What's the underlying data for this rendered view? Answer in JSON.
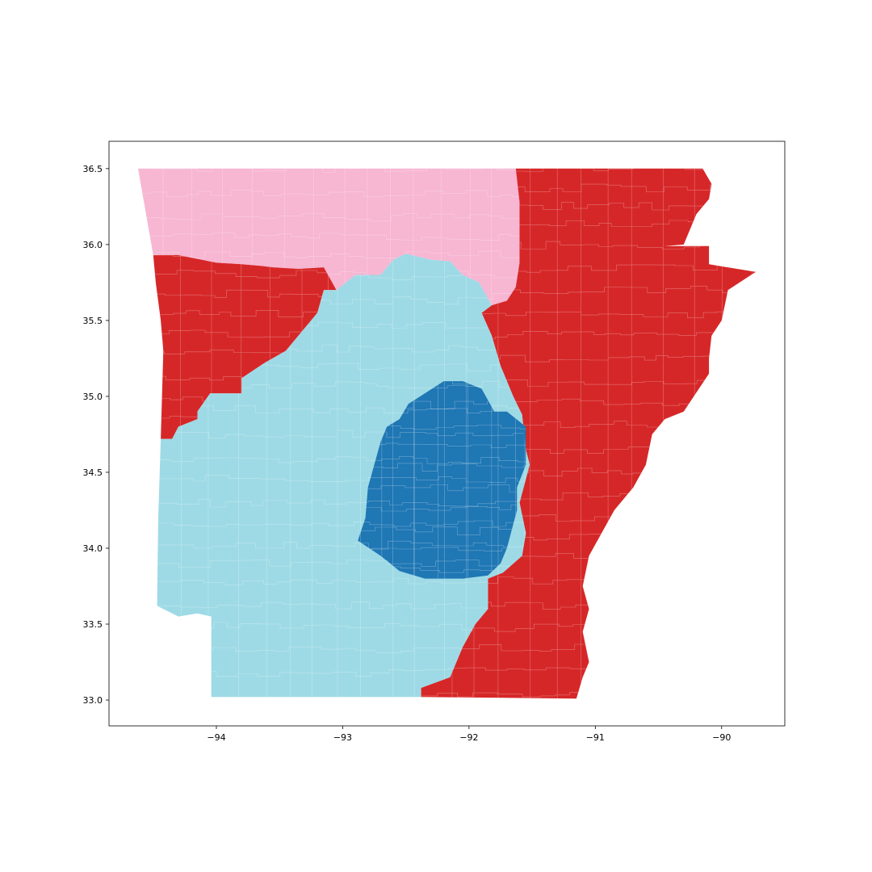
{
  "map": {
    "x_axis": {
      "range": [
        -94.85,
        -89.5
      ],
      "ticks": [
        {
          "value": -94,
          "label": "−94"
        },
        {
          "value": -93,
          "label": "−93"
        },
        {
          "value": -92,
          "label": "−92"
        },
        {
          "value": -91,
          "label": "−91"
        },
        {
          "value": -90,
          "label": "−90"
        }
      ]
    },
    "y_axis": {
      "range": [
        32.83,
        36.68
      ],
      "ticks": [
        {
          "value": 33.0,
          "label": "33.0"
        },
        {
          "value": 33.5,
          "label": "33.5"
        },
        {
          "value": 34.0,
          "label": "34.0"
        },
        {
          "value": 34.5,
          "label": "34.5"
        },
        {
          "value": 35.0,
          "label": "35.0"
        },
        {
          "value": 35.5,
          "label": "35.5"
        },
        {
          "value": 36.0,
          "label": "36.0"
        },
        {
          "value": 36.5,
          "label": "36.5"
        }
      ]
    },
    "grid": false,
    "legend": "none",
    "regions": [
      {
        "id": "district-northwest",
        "color": "#f7b6d2",
        "polygon": [
          [
            -94.62,
            36.5
          ],
          [
            -91.63,
            36.5
          ],
          [
            -91.6,
            36.28
          ],
          [
            -91.6,
            35.88
          ],
          [
            -91.63,
            35.72
          ],
          [
            -91.7,
            35.63
          ],
          [
            -91.82,
            35.6
          ],
          [
            -91.92,
            35.75
          ],
          [
            -92.05,
            35.8
          ],
          [
            -92.15,
            35.89
          ],
          [
            -92.3,
            35.9
          ],
          [
            -92.5,
            35.94
          ],
          [
            -92.6,
            35.9
          ],
          [
            -92.7,
            35.8
          ],
          [
            -92.9,
            35.8
          ],
          [
            -93.05,
            35.7
          ],
          [
            -93.15,
            35.85
          ],
          [
            -93.35,
            35.84
          ],
          [
            -93.55,
            35.85
          ],
          [
            -93.65,
            35.86
          ],
          [
            -93.8,
            35.87
          ],
          [
            -94.0,
            35.88
          ],
          [
            -94.3,
            35.93
          ],
          [
            -94.5,
            35.93
          ]
        ]
      },
      {
        "id": "district-fort-smith",
        "color": "#d62728",
        "polygon": [
          [
            -94.5,
            35.93
          ],
          [
            -94.3,
            35.93
          ],
          [
            -94.0,
            35.88
          ],
          [
            -93.8,
            35.87
          ],
          [
            -93.65,
            35.86
          ],
          [
            -93.55,
            35.85
          ],
          [
            -93.35,
            35.84
          ],
          [
            -93.15,
            35.85
          ],
          [
            -93.05,
            35.7
          ],
          [
            -93.15,
            35.7
          ],
          [
            -93.2,
            35.55
          ],
          [
            -93.3,
            35.45
          ],
          [
            -93.45,
            35.3
          ],
          [
            -93.62,
            35.22
          ],
          [
            -93.8,
            35.12
          ],
          [
            -93.8,
            35.02
          ],
          [
            -94.05,
            35.02
          ],
          [
            -94.15,
            34.9
          ],
          [
            -94.15,
            34.85
          ],
          [
            -94.3,
            34.8
          ],
          [
            -94.35,
            34.72
          ],
          [
            -94.44,
            34.72
          ],
          [
            -94.42,
            35.3
          ],
          [
            -94.44,
            35.5
          ],
          [
            -94.48,
            35.75
          ]
        ]
      },
      {
        "id": "district-east",
        "color": "#d62728",
        "polygon": [
          [
            -91.63,
            36.5
          ],
          [
            -90.15,
            36.5
          ],
          [
            -90.08,
            36.4
          ],
          [
            -90.1,
            36.3
          ],
          [
            -90.2,
            36.2
          ],
          [
            -90.3,
            36.0
          ],
          [
            -90.45,
            35.99
          ],
          [
            -90.65,
            35.99
          ],
          [
            -90.65,
            35.99
          ],
          [
            -90.1,
            35.99
          ],
          [
            -90.1,
            35.87
          ],
          [
            -89.73,
            35.82
          ],
          [
            -89.95,
            35.7
          ],
          [
            -90.0,
            35.5
          ],
          [
            -90.08,
            35.4
          ],
          [
            -90.1,
            35.25
          ],
          [
            -90.1,
            35.15
          ],
          [
            -90.3,
            34.9
          ],
          [
            -90.45,
            34.85
          ],
          [
            -90.55,
            34.75
          ],
          [
            -90.6,
            34.55
          ],
          [
            -90.7,
            34.4
          ],
          [
            -90.85,
            34.25
          ],
          [
            -90.95,
            34.1
          ],
          [
            -91.05,
            33.95
          ],
          [
            -91.1,
            33.75
          ],
          [
            -91.05,
            33.6
          ],
          [
            -91.1,
            33.45
          ],
          [
            -91.05,
            33.25
          ],
          [
            -91.1,
            33.15
          ],
          [
            -91.15,
            33.01
          ],
          [
            -92.38,
            33.02
          ],
          [
            -92.38,
            33.08
          ],
          [
            -92.15,
            33.15
          ],
          [
            -92.05,
            33.35
          ],
          [
            -91.95,
            33.5
          ],
          [
            -91.85,
            33.6
          ],
          [
            -91.85,
            33.8
          ],
          [
            -91.73,
            33.84
          ],
          [
            -91.58,
            33.95
          ],
          [
            -91.55,
            34.1
          ],
          [
            -91.6,
            34.3
          ],
          [
            -91.52,
            34.55
          ],
          [
            -91.55,
            34.65
          ],
          [
            -91.58,
            34.88
          ],
          [
            -91.65,
            35.0
          ],
          [
            -91.75,
            35.2
          ],
          [
            -91.82,
            35.4
          ],
          [
            -91.9,
            35.55
          ],
          [
            -91.82,
            35.6
          ],
          [
            -91.7,
            35.63
          ],
          [
            -91.63,
            35.72
          ],
          [
            -91.6,
            35.88
          ],
          [
            -91.6,
            36.28
          ]
        ]
      },
      {
        "id": "district-south-west",
        "color": "#9edae5",
        "polygon": [
          [
            -94.44,
            34.72
          ],
          [
            -94.35,
            34.72
          ],
          [
            -94.3,
            34.8
          ],
          [
            -94.15,
            34.85
          ],
          [
            -94.15,
            34.9
          ],
          [
            -94.05,
            35.02
          ],
          [
            -93.8,
            35.02
          ],
          [
            -93.8,
            35.12
          ],
          [
            -93.62,
            35.22
          ],
          [
            -93.45,
            35.3
          ],
          [
            -93.3,
            35.45
          ],
          [
            -93.2,
            35.55
          ],
          [
            -93.15,
            35.7
          ],
          [
            -93.05,
            35.7
          ],
          [
            -92.9,
            35.8
          ],
          [
            -92.7,
            35.8
          ],
          [
            -92.6,
            35.9
          ],
          [
            -92.5,
            35.94
          ],
          [
            -92.3,
            35.9
          ],
          [
            -92.15,
            35.89
          ],
          [
            -92.05,
            35.8
          ],
          [
            -91.92,
            35.75
          ],
          [
            -91.82,
            35.6
          ],
          [
            -91.9,
            35.55
          ],
          [
            -91.82,
            35.4
          ],
          [
            -91.75,
            35.2
          ],
          [
            -91.65,
            35.0
          ],
          [
            -91.58,
            34.88
          ],
          [
            -91.55,
            34.65
          ],
          [
            -91.52,
            34.55
          ],
          [
            -91.6,
            34.3
          ],
          [
            -91.55,
            34.1
          ],
          [
            -91.58,
            33.95
          ],
          [
            -91.73,
            33.84
          ],
          [
            -91.85,
            33.8
          ],
          [
            -91.85,
            33.6
          ],
          [
            -91.95,
            33.5
          ],
          [
            -92.05,
            33.35
          ],
          [
            -92.15,
            33.15
          ],
          [
            -92.38,
            33.08
          ],
          [
            -92.38,
            33.02
          ],
          [
            -94.04,
            33.02
          ],
          [
            -94.04,
            33.55
          ],
          [
            -94.15,
            33.57
          ],
          [
            -94.3,
            33.55
          ],
          [
            -94.47,
            33.62
          ],
          [
            -94.46,
            34.2
          ]
        ]
      },
      {
        "id": "district-central",
        "color": "#1f77b4",
        "polygon": [
          [
            -92.48,
            34.95
          ],
          [
            -92.2,
            35.1
          ],
          [
            -92.05,
            35.1
          ],
          [
            -91.9,
            35.05
          ],
          [
            -91.8,
            34.9
          ],
          [
            -91.7,
            34.9
          ],
          [
            -91.55,
            34.8
          ],
          [
            -91.55,
            34.55
          ],
          [
            -91.62,
            34.4
          ],
          [
            -91.62,
            34.25
          ],
          [
            -91.7,
            34.0
          ],
          [
            -91.75,
            33.9
          ],
          [
            -91.85,
            33.82
          ],
          [
            -92.05,
            33.8
          ],
          [
            -92.35,
            33.8
          ],
          [
            -92.55,
            33.85
          ],
          [
            -92.7,
            33.95
          ],
          [
            -92.88,
            34.05
          ],
          [
            -92.82,
            34.2
          ],
          [
            -92.8,
            34.4
          ],
          [
            -92.75,
            34.55
          ],
          [
            -92.7,
            34.7
          ],
          [
            -92.65,
            34.8
          ],
          [
            -92.55,
            34.85
          ]
        ]
      }
    ]
  }
}
